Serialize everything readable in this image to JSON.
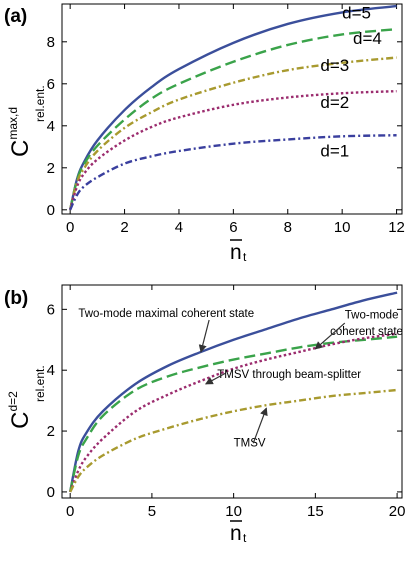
{
  "panels": [
    {
      "label": "(a)",
      "ylabel": {
        "main": "C",
        "sup": "max,d",
        "sub": "rel.ent."
      },
      "xlabel": {
        "main": "n",
        "sub": "t"
      },
      "arrows": false
    },
    {
      "label": "(b)",
      "ylabel": {
        "main": "C",
        "sup": "d=2",
        "sub": "rel.ent."
      },
      "xlabel": {
        "main": "n",
        "sub": "t"
      },
      "arrows": true
    }
  ],
  "chart_data": [
    {
      "type": "line",
      "title": "",
      "xlim": [
        -0.3,
        12.2
      ],
      "ylim": [
        -0.2,
        9.8
      ],
      "xticks": [
        0,
        2,
        4,
        6,
        8,
        10,
        12
      ],
      "yticks": [
        0,
        2,
        4,
        6,
        8
      ],
      "x": [
        0,
        0.25,
        0.5,
        1,
        2,
        3,
        4,
        6,
        8,
        10,
        12
      ],
      "series": [
        {
          "name": "d=5",
          "color": "#3b4f9b",
          "dash": "solid",
          "values": [
            0,
            1.45,
            2.25,
            3.3,
            4.75,
            5.85,
            6.7,
            7.95,
            8.85,
            9.4,
            9.7
          ]
        },
        {
          "name": "d=4",
          "color": "#3aa34a",
          "dash": "long-dash",
          "values": [
            0,
            1.4,
            2.15,
            3.05,
            4.3,
            5.3,
            6.0,
            7.05,
            7.85,
            8.35,
            8.6
          ]
        },
        {
          "name": "d=3",
          "color": "#a89a2f",
          "dash": "dash-dot",
          "values": [
            0,
            1.3,
            1.95,
            2.8,
            3.9,
            4.65,
            5.25,
            6.05,
            6.65,
            7.0,
            7.25
          ]
        },
        {
          "name": "d=2",
          "color": "#9b2c6e",
          "dash": "dot",
          "values": [
            0,
            1.1,
            1.7,
            2.4,
            3.3,
            3.95,
            4.4,
            5.0,
            5.35,
            5.55,
            5.65
          ]
        },
        {
          "name": "d=1",
          "color": "#3a3f9e",
          "dash": "dash-dot",
          "values": [
            0,
            0.7,
            1.1,
            1.55,
            2.2,
            2.55,
            2.8,
            3.15,
            3.35,
            3.5,
            3.55
          ]
        }
      ],
      "annotations": [
        {
          "text": "d=5",
          "x": 10.0,
          "y": 9.1
        },
        {
          "text": "d=4",
          "x": 10.4,
          "y": 7.9
        },
        {
          "text": "d=3",
          "x": 9.2,
          "y": 6.6
        },
        {
          "text": "d=2",
          "x": 9.2,
          "y": 4.85
        },
        {
          "text": "d=1",
          "x": 9.2,
          "y": 2.55
        }
      ]
    },
    {
      "type": "line",
      "title": "",
      "xlim": [
        -0.5,
        20.3
      ],
      "ylim": [
        -0.2,
        6.8
      ],
      "xticks": [
        0,
        5,
        10,
        15,
        20
      ],
      "yticks": [
        0,
        2,
        4,
        6
      ],
      "x": [
        0,
        0.5,
        1,
        2,
        4,
        6,
        8,
        10,
        12,
        14,
        16,
        18,
        20
      ],
      "series": [
        {
          "name": "Two-mode maximal coherent state",
          "color": "#3b4f9b",
          "dash": "solid",
          "values": [
            0,
            1.35,
            1.95,
            2.65,
            3.55,
            4.15,
            4.6,
            5.0,
            5.35,
            5.7,
            6.0,
            6.3,
            6.55
          ]
        },
        {
          "name": "Two-mode coherent state",
          "color": "#3aa34a",
          "dash": "long-dash",
          "values": [
            0,
            1.2,
            1.75,
            2.5,
            3.35,
            3.8,
            4.1,
            4.35,
            4.55,
            4.75,
            4.9,
            5.0,
            5.1
          ]
        },
        {
          "name": "TMSV through beam-splitter",
          "color": "#9b2c6e",
          "dash": "dot",
          "values": [
            0,
            0.7,
            1.15,
            1.75,
            2.65,
            3.2,
            3.65,
            4.05,
            4.35,
            4.6,
            4.85,
            5.05,
            5.2
          ]
        },
        {
          "name": "TMSV",
          "color": "#a89a2f",
          "dash": "dash-dot",
          "values": [
            0,
            0.5,
            0.8,
            1.2,
            1.75,
            2.1,
            2.4,
            2.65,
            2.85,
            3.0,
            3.15,
            3.25,
            3.35
          ]
        }
      ],
      "annotations": [
        {
          "text": "Two-mode maximal coherent state",
          "x": 0.5,
          "y": 5.75
        },
        {
          "text": "Two-mode",
          "x": 16.8,
          "y": 5.7
        },
        {
          "text": "coherent state",
          "x": 15.9,
          "y": 5.15
        },
        {
          "text": "TMSV through beam-splitter",
          "x": 9.0,
          "y": 3.75
        },
        {
          "text": "TMSV",
          "x": 10.0,
          "y": 1.5
        }
      ]
    }
  ]
}
